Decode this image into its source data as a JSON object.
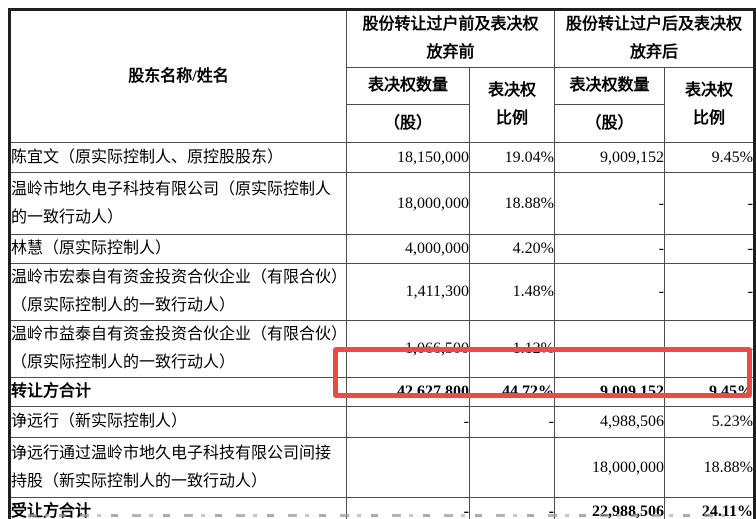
{
  "table": {
    "header": {
      "shareholder_col": "股东名称/姓名",
      "group_before": "股份转让过户前及表决权放弃前",
      "group_after": "股份转让过户后及表决权放弃后",
      "sub_qty_line1": "表决权数量",
      "sub_qty_line2": "（股）",
      "sub_pct_line1": "表决权",
      "sub_pct_line2": "比例"
    },
    "rows": [
      {
        "name": "陈宜文（原实际控制人、原控股股东）",
        "before_qty": "18,150,000",
        "before_pct": "19.04%",
        "after_qty": "9,009,152",
        "after_pct": "9.45%",
        "bold": false,
        "highlighted": false
      },
      {
        "name": "温岭市地久电子科技有限公司（原实际控制人的一致行动人）",
        "before_qty": "18,000,000",
        "before_pct": "18.88%",
        "after_qty": "-",
        "after_pct": "-",
        "bold": false,
        "highlighted": false
      },
      {
        "name": "林慧（原实际控制人）",
        "before_qty": "4,000,000",
        "before_pct": "4.20%",
        "after_qty": "-",
        "after_pct": "-",
        "bold": false,
        "highlighted": false
      },
      {
        "name": "温岭市宏泰自有资金投资合伙企业（有限合伙）（原实际控制人的一致行动人）",
        "before_qty": "1,411,300",
        "before_pct": "1.48%",
        "after_qty": "-",
        "after_pct": "-",
        "bold": false,
        "highlighted": false
      },
      {
        "name": "温岭市益泰自有资金投资合伙企业（有限合伙）（原实际控制人的一致行动人）",
        "before_qty": "1,066,500",
        "before_pct": "1.12%",
        "after_qty": "-",
        "after_pct": "-",
        "bold": false,
        "highlighted": false
      },
      {
        "name": "转让方合计",
        "before_qty": "42,627,800",
        "before_pct": "44.72%",
        "after_qty": "9,009,152",
        "after_pct": "9.45%",
        "bold": true,
        "highlighted": true
      },
      {
        "name": "诤远行（新实际控制人）",
        "before_qty": "-",
        "before_pct": "-",
        "after_qty": "4,988,506",
        "after_pct": "5.23%",
        "bold": false,
        "highlighted": false
      },
      {
        "name": "诤远行通过温岭市地久电子科技有限公司间接持股（新实际控制人的一致行动人）",
        "before_qty": "",
        "before_pct": "",
        "after_qty": "18,000,000",
        "after_pct": "18.88%",
        "bold": false,
        "highlighted": false
      },
      {
        "name": "受让方合计",
        "before_qty": "-",
        "before_pct": "-",
        "after_qty": "22,988,506",
        "after_pct": "24.11%",
        "bold": true,
        "highlighted": false
      }
    ],
    "annotation": {
      "type": "highlight-box",
      "color": "#e94b4b",
      "target_row": "转让方合计"
    }
  }
}
